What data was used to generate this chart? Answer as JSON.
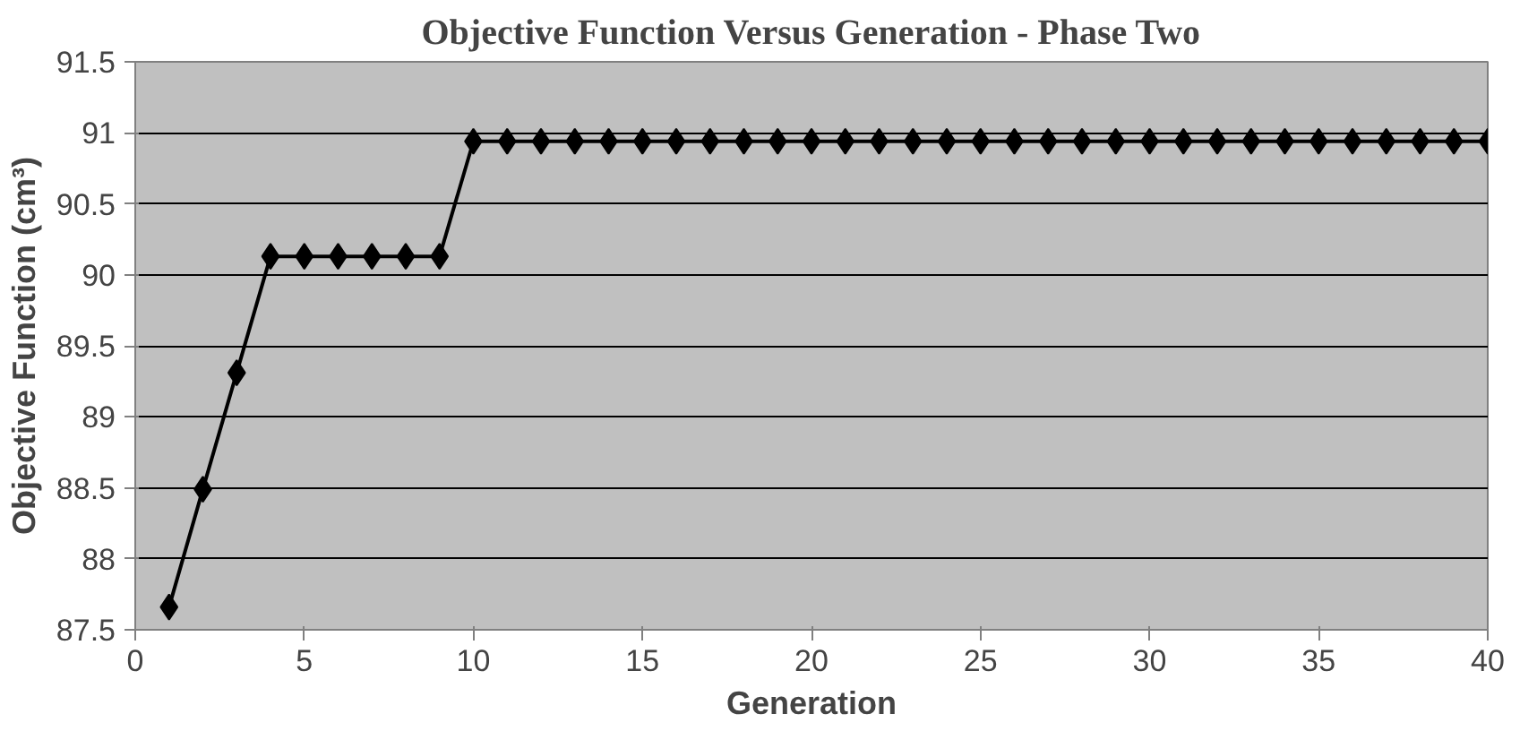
{
  "chart_data": {
    "type": "line",
    "title": "Objective Function Versus Generation - Phase Two",
    "xlabel": "Generation",
    "ylabel": "Objective Function (cm³)",
    "x": [
      1,
      2,
      3,
      4,
      5,
      6,
      7,
      8,
      9,
      10,
      11,
      12,
      13,
      14,
      15,
      16,
      17,
      18,
      19,
      20,
      21,
      22,
      23,
      24,
      25,
      26,
      27,
      28,
      29,
      30,
      31,
      32,
      33,
      34,
      35,
      36,
      37,
      38,
      39,
      40
    ],
    "series": [
      {
        "color": "#000000",
        "values": [
          87.66,
          88.49,
          89.31,
          90.13,
          90.13,
          90.13,
          90.13,
          90.13,
          90.13,
          90.94,
          90.94,
          90.94,
          90.94,
          90.94,
          90.94,
          90.94,
          90.94,
          90.94,
          90.94,
          90.94,
          90.94,
          90.94,
          90.94,
          90.94,
          90.94,
          90.94,
          90.94,
          90.94,
          90.94,
          90.94,
          90.94,
          90.94,
          90.94,
          90.94,
          90.94,
          90.94,
          90.94,
          90.94,
          90.94,
          90.94
        ]
      }
    ],
    "xlim": [
      0,
      40
    ],
    "xticks": [
      0,
      5,
      10,
      15,
      20,
      25,
      30,
      35,
      40
    ],
    "ylim": [
      87.5,
      91.5
    ],
    "yticks": [
      87.5,
      88,
      88.5,
      89,
      89.5,
      90,
      90.5,
      91,
      91.5
    ],
    "grid": "y",
    "marker": "diamond",
    "line_style": "solid"
  }
}
